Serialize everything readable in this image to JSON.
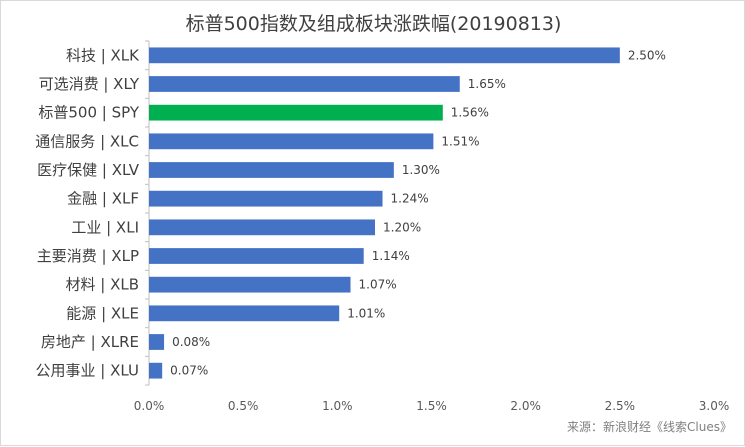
{
  "chart_data": {
    "type": "bar",
    "orientation": "horizontal",
    "title": "标普500指数及组成板块涨跌幅(20190813)",
    "categories": [
      "科技 | XLK",
      "可选消费 | XLY",
      "标普500 | SPY",
      "通信服务 | XLC",
      "医疗保健 | XLV",
      "金融 | XLF",
      "工业 | XLI",
      "主要消费 | XLP",
      "材料 | XLB",
      "能源 | XLE",
      "房地产 | XLRE",
      "公用事业 | XLU"
    ],
    "values": [
      2.5,
      1.65,
      1.56,
      1.51,
      1.3,
      1.24,
      1.2,
      1.14,
      1.07,
      1.01,
      0.08,
      0.07
    ],
    "value_labels": [
      "2.50%",
      "1.65%",
      "1.56%",
      "1.51%",
      "1.30%",
      "1.24%",
      "1.20%",
      "1.14%",
      "1.07%",
      "1.01%",
      "0.08%",
      "0.07%"
    ],
    "bar_colors": [
      "#4472c4",
      "#4472c4",
      "#00b050",
      "#4472c4",
      "#4472c4",
      "#4472c4",
      "#4472c4",
      "#4472c4",
      "#4472c4",
      "#4472c4",
      "#4472c4",
      "#4472c4"
    ],
    "xlim": [
      0,
      3.0
    ],
    "x_ticks": [
      0,
      0.5,
      1.0,
      1.5,
      2.0,
      2.5,
      3.0
    ],
    "x_tick_labels": [
      "0.0%",
      "0.5%",
      "1.0%",
      "1.5%",
      "2.0%",
      "2.5%",
      "3.0%"
    ],
    "grid": false,
    "legend": "none"
  },
  "source_note": "来源：新浪财经《线索Clues》"
}
